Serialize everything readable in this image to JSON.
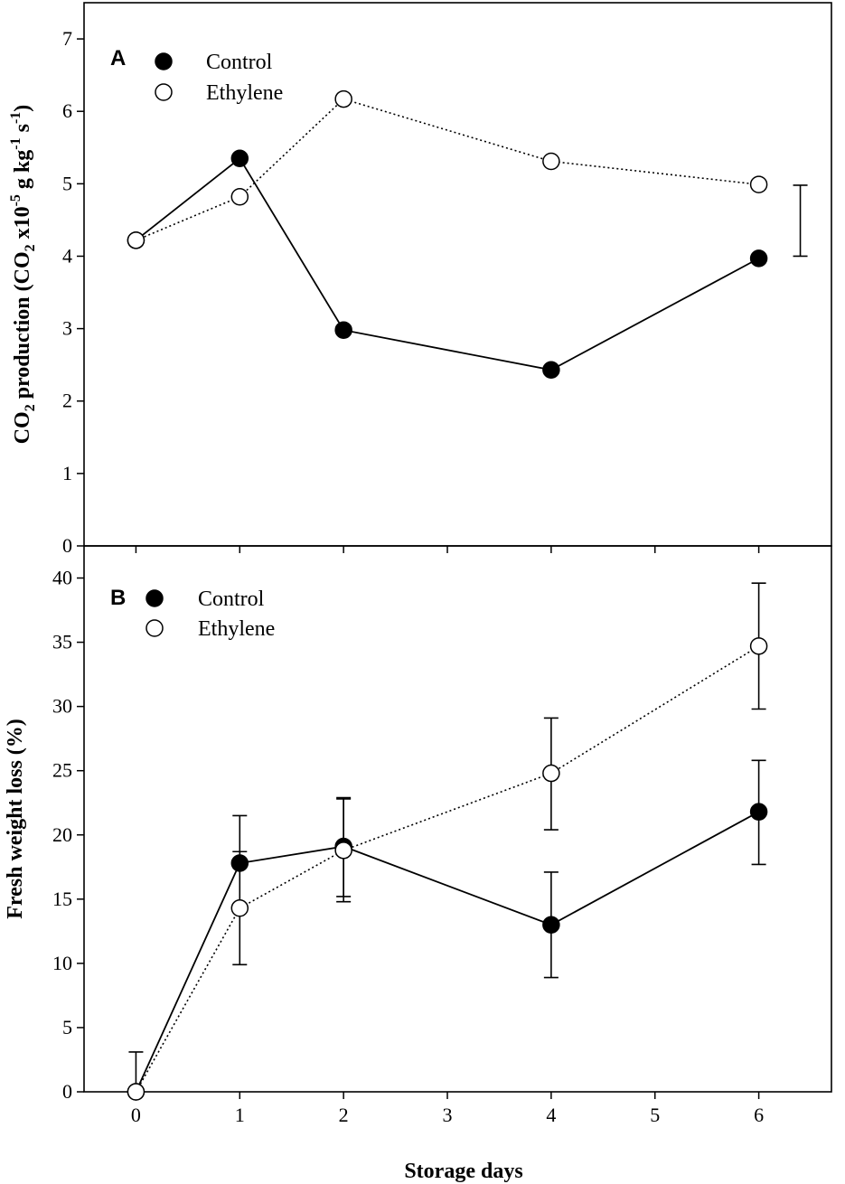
{
  "chart_data": [
    {
      "type": "line",
      "panel_label": "A",
      "x_ticks": [
        0,
        1,
        2,
        3,
        4,
        5,
        6
      ],
      "y_ticks": [
        0,
        1,
        2,
        3,
        4,
        5,
        6,
        7
      ],
      "xlim": [
        -0.5,
        6.7
      ],
      "ylim": [
        0,
        7.5
      ],
      "ylabel": {
        "parts": [
          {
            "t": "CO"
          },
          {
            "t": "2",
            "s": "sub"
          },
          {
            "t": " production (CO"
          },
          {
            "t": "2",
            "s": "sub"
          },
          {
            "t": " x10"
          },
          {
            "t": "-5",
            "s": "sup"
          },
          {
            "t": " g kg"
          },
          {
            "t": "-1",
            "s": "sup"
          },
          {
            "t": " s"
          },
          {
            "t": "-1",
            "s": "sup"
          },
          {
            "t": ")"
          }
        ]
      },
      "legend": [
        "Control",
        "Ethylene"
      ],
      "series": [
        {
          "name": "Control",
          "marker": "filled-circle",
          "line": "solid",
          "x": [
            0,
            1,
            2,
            4,
            6
          ],
          "y": [
            4.22,
            5.35,
            2.98,
            2.43,
            3.97
          ]
        },
        {
          "name": "Ethylene",
          "marker": "open-circle",
          "line": "dotted",
          "x": [
            0,
            1,
            2,
            4,
            6
          ],
          "y": [
            4.22,
            4.82,
            6.17,
            5.31,
            4.99
          ]
        }
      ],
      "lsd_bar": {
        "x": 6.4,
        "low": 4.0,
        "high": 4.98
      }
    },
    {
      "type": "line",
      "panel_label": "B",
      "x_ticks": [
        0,
        1,
        2,
        3,
        4,
        5,
        6
      ],
      "y_ticks": [
        0,
        5,
        10,
        15,
        20,
        25,
        30,
        35,
        40
      ],
      "xlim": [
        -0.5,
        6.7
      ],
      "ylim": [
        0,
        42.5
      ],
      "xlabel": "Storage days",
      "ylabel": {
        "parts": [
          {
            "t": "Fresh weight loss (%)"
          }
        ]
      },
      "legend": [
        "Control",
        "Ethylene"
      ],
      "series": [
        {
          "name": "Control",
          "marker": "filled-circle",
          "line": "solid",
          "x": [
            0,
            1,
            2,
            4,
            6
          ],
          "y": [
            0.0,
            17.8,
            19.1,
            13.0,
            21.8
          ],
          "err_low": [
            0,
            17.8,
            15.2,
            8.9,
            17.7
          ],
          "err_high": [
            0,
            21.5,
            22.9,
            17.1,
            25.8
          ]
        },
        {
          "name": "Ethylene",
          "marker": "open-circle",
          "line": "dotted",
          "x": [
            0,
            1,
            2,
            4,
            6
          ],
          "y": [
            0.0,
            14.3,
            18.8,
            24.8,
            34.7
          ],
          "err_low": [
            0,
            9.9,
            14.8,
            20.4,
            29.8
          ],
          "err_high": [
            3.1,
            18.7,
            22.8,
            29.1,
            39.6
          ]
        }
      ]
    }
  ]
}
